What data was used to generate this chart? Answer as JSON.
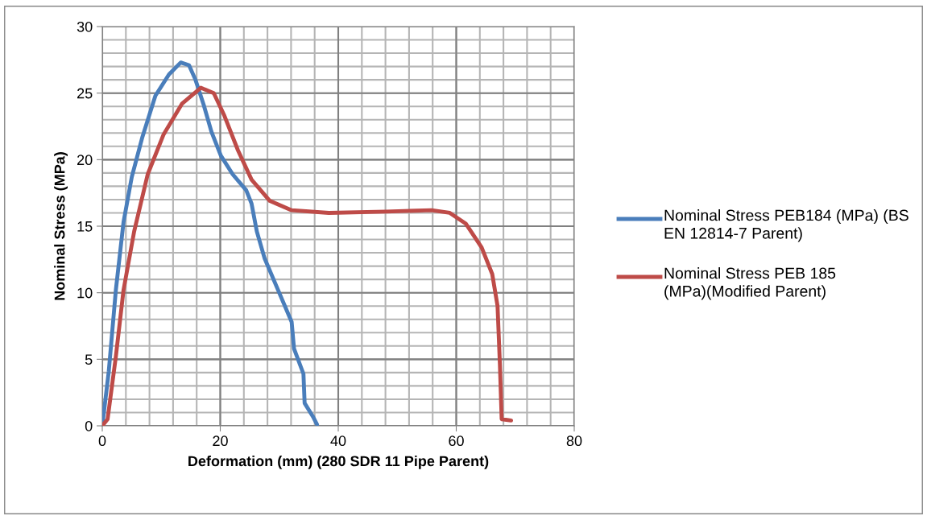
{
  "chart_data": {
    "type": "line",
    "xlabel": "Deformation (mm) (280 SDR 11 Pipe Parent)",
    "ylabel": "Nominal Stress (MPa)",
    "xlim": [
      0,
      80
    ],
    "xticks": [
      0,
      20,
      40,
      60,
      80
    ],
    "ylim": [
      0,
      30
    ],
    "yticks": [
      0,
      5,
      10,
      15,
      20,
      25,
      30
    ],
    "grid": true,
    "legend": "right",
    "marker": "none",
    "line_style": "solid",
    "series": [
      {
        "name": "Nominal Stress PEB184 (MPa) (BS EN 12814-7 Parent)",
        "color": "#4a7ebb",
        "x": [
          0,
          1.1,
          2.3,
          3.6,
          5.0,
          6.8,
          9.0,
          11.3,
          13.3,
          14.7,
          15.8,
          17.2,
          18.5,
          20.1,
          22.1,
          24.4,
          25.3,
          26.2,
          27.5,
          29.8,
          32.1,
          32.5,
          34.1,
          34.3,
          35.7,
          36.4
        ],
        "values": [
          0,
          4.1,
          10.2,
          15.3,
          18.7,
          21.7,
          24.8,
          26.4,
          27.3,
          27.1,
          26.0,
          24.1,
          22.1,
          20.3,
          18.9,
          17.7,
          16.7,
          14.6,
          12.6,
          10.2,
          7.8,
          5.8,
          3.9,
          1.7,
          0.7,
          0.1
        ]
      },
      {
        "name": "Nominal Stress PEB 185 (MPa)(Modified Parent)",
        "color": "#be4b48",
        "x": [
          0,
          0.9,
          2.3,
          3.6,
          5.4,
          7.7,
          10.4,
          13.5,
          16.7,
          18.9,
          20.7,
          23.0,
          25.3,
          28.4,
          32.1,
          38.4,
          48.1,
          55.8,
          58.9,
          61.6,
          64.3,
          66.1,
          67.0,
          67.4,
          67.7,
          69.3
        ],
        "values": [
          0,
          0.5,
          5.2,
          10.2,
          14.6,
          18.9,
          21.9,
          24.2,
          25.4,
          25.0,
          23.3,
          20.7,
          18.5,
          16.9,
          16.2,
          16.0,
          16.1,
          16.2,
          16.0,
          15.2,
          13.4,
          11.4,
          9.0,
          4.6,
          0.5,
          0.4
        ]
      }
    ]
  }
}
